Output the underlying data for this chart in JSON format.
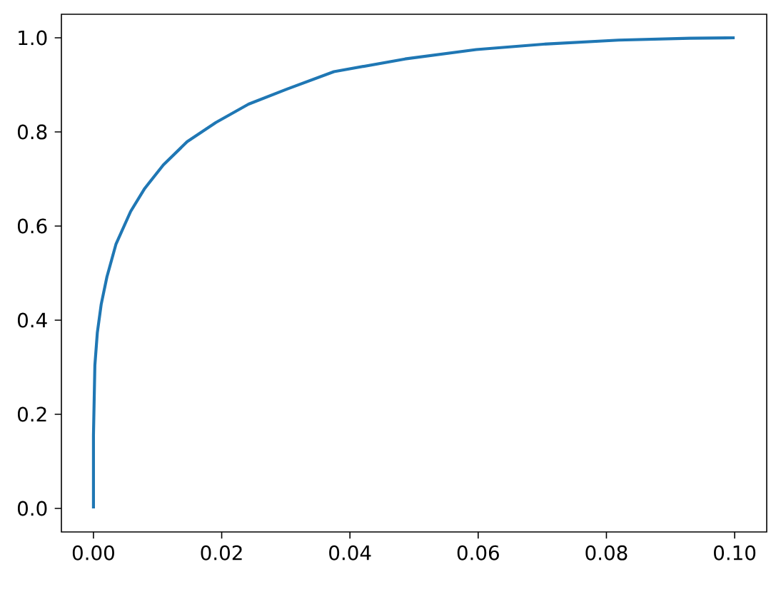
{
  "chart_data": {
    "type": "line",
    "x": [
      0,
      0,
      0.00022,
      0.0006,
      0.0012,
      0.0021,
      0.0035,
      0.0058,
      0.008,
      0.0109,
      0.0146,
      0.0191,
      0.0242,
      0.0302,
      0.0375,
      0.0486,
      0.0597,
      0.0708,
      0.0819,
      0.093,
      0.1
    ],
    "values": [
      0,
      0.155,
      0.304,
      0.373,
      0.433,
      0.492,
      0.561,
      0.631,
      0.68,
      0.73,
      0.779,
      0.82,
      0.859,
      0.891,
      0.928,
      0.955,
      0.975,
      0.987,
      0.995,
      0.999,
      1.0
    ],
    "color": "#1f77b4",
    "xlim": [
      -0.005,
      0.105
    ],
    "ylim": [
      -0.05,
      1.05
    ],
    "xticks": [
      {
        "value": 0,
        "label": "0.00"
      },
      {
        "value": 0.02,
        "label": "0.02"
      },
      {
        "value": 0.04,
        "label": "0.04"
      },
      {
        "value": 0.06,
        "label": "0.06"
      },
      {
        "value": 0.08,
        "label": "0.08"
      },
      {
        "value": 0.1,
        "label": "0.10"
      }
    ],
    "yticks": [
      {
        "value": 0,
        "label": "0.0"
      },
      {
        "value": 0.2,
        "label": "0.2"
      },
      {
        "value": 0.4,
        "label": "0.4"
      },
      {
        "value": 0.6,
        "label": "0.6"
      },
      {
        "value": 0.8,
        "label": "0.8"
      },
      {
        "value": 1.0,
        "label": "1.0"
      }
    ]
  }
}
